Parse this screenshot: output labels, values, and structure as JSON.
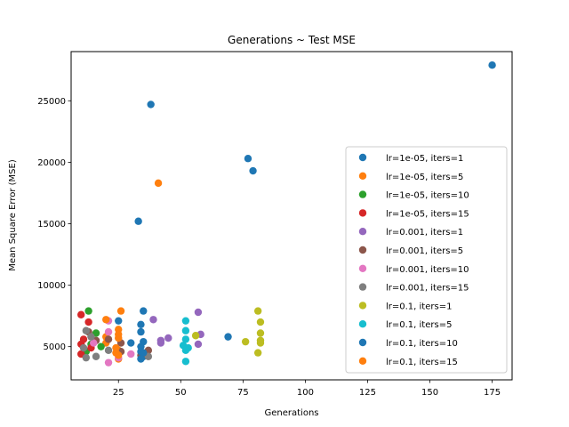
{
  "chart_data": {
    "type": "scatter",
    "title": "Generations ~ Test MSE",
    "xlabel": "Generations",
    "ylabel": "Mean Square Error (MSE)",
    "xlim": [
      6,
      183
    ],
    "ylim": [
      2300,
      29000
    ],
    "xticks": [
      25,
      50,
      75,
      100,
      125,
      150,
      175
    ],
    "yticks": [
      5000,
      10000,
      15000,
      20000,
      25000
    ],
    "grid": false,
    "legend_position": "right",
    "series": [
      {
        "name": "lr=1e-05, iters=1",
        "color": "#1f77b4",
        "points": [
          [
            175,
            27900
          ],
          [
            38,
            24700
          ],
          [
            77,
            20300
          ],
          [
            79,
            19300
          ],
          [
            33,
            15200
          ],
          [
            35,
            7900
          ],
          [
            34,
            6200
          ],
          [
            69,
            5800
          ],
          [
            35,
            5400
          ],
          [
            30,
            5300
          ],
          [
            35,
            4200
          ]
        ]
      },
      {
        "name": "lr=1e-05, iters=5",
        "color": "#ff7f0e",
        "points": [
          [
            41,
            18300
          ],
          [
            26,
            7900
          ],
          [
            25,
            6400
          ],
          [
            20,
            5800
          ],
          [
            25,
            4700
          ],
          [
            20,
            5300
          ],
          [
            25,
            4000
          ]
        ]
      },
      {
        "name": "lr=1e-05, iters=10",
        "color": "#2ca02c",
        "points": [
          [
            13,
            7900
          ],
          [
            16,
            6100
          ],
          [
            14,
            5200
          ],
          [
            18,
            5000
          ],
          [
            12,
            4600
          ]
        ]
      },
      {
        "name": "lr=1e-05, iters=15",
        "color": "#d62728",
        "points": [
          [
            10,
            7600
          ],
          [
            13,
            7000
          ],
          [
            11,
            5600
          ],
          [
            10,
            5200
          ],
          [
            14,
            4900
          ],
          [
            10,
            4400
          ]
        ]
      },
      {
        "name": "lr=0.001, iters=1",
        "color": "#9467bd",
        "points": [
          [
            39,
            7200
          ],
          [
            57,
            7800
          ],
          [
            42,
            5500
          ],
          [
            45,
            5700
          ],
          [
            42,
            5300
          ],
          [
            57,
            5200
          ],
          [
            58,
            6000
          ]
        ]
      },
      {
        "name": "lr=0.001, iters=5",
        "color": "#8c564b",
        "points": [
          [
            13,
            6200
          ],
          [
            16,
            5500
          ],
          [
            21,
            5600
          ],
          [
            37,
            4700
          ],
          [
            34,
            4300
          ],
          [
            26,
            4600
          ],
          [
            26,
            5300
          ]
        ]
      },
      {
        "name": "lr=0.001, iters=10",
        "color": "#e377c2",
        "points": [
          [
            21,
            7100
          ],
          [
            21,
            6200
          ],
          [
            15,
            5300
          ],
          [
            21,
            3700
          ],
          [
            25,
            4100
          ],
          [
            30,
            4400
          ]
        ]
      },
      {
        "name": "lr=0.001, iters=15",
        "color": "#7f7f7f",
        "points": [
          [
            12,
            6300
          ],
          [
            14,
            5800
          ],
          [
            11,
            4900
          ],
          [
            12,
            4100
          ],
          [
            16,
            4200
          ],
          [
            37,
            4200
          ],
          [
            21,
            4700
          ]
        ]
      },
      {
        "name": "lr=0.1, iters=1",
        "color": "#bcbd22",
        "points": [
          [
            81,
            7900
          ],
          [
            82,
            7000
          ],
          [
            82,
            6100
          ],
          [
            82,
            5500
          ],
          [
            82,
            5300
          ],
          [
            76,
            5400
          ],
          [
            81,
            4500
          ],
          [
            56,
            5900
          ]
        ]
      },
      {
        "name": "lr=0.1, iters=5",
        "color": "#17becf",
        "points": [
          [
            52,
            7100
          ],
          [
            52,
            6300
          ],
          [
            52,
            5600
          ],
          [
            51,
            5100
          ],
          [
            53,
            4900
          ],
          [
            52,
            4700
          ],
          [
            52,
            3800
          ]
        ]
      },
      {
        "name": "lr=0.1, iters=10",
        "color": "#1f77b4",
        "points": [
          [
            25,
            7100
          ],
          [
            34,
            6800
          ],
          [
            34,
            5000
          ],
          [
            34,
            4600
          ],
          [
            35,
            4500
          ],
          [
            34,
            4000
          ]
        ]
      },
      {
        "name": "lr=0.1, iters=15",
        "color": "#ff7f0e",
        "points": [
          [
            25,
            6000
          ],
          [
            25,
            5700
          ],
          [
            20,
            7200
          ],
          [
            24,
            4900
          ],
          [
            24,
            4500
          ],
          [
            25,
            4300
          ]
        ]
      }
    ]
  }
}
